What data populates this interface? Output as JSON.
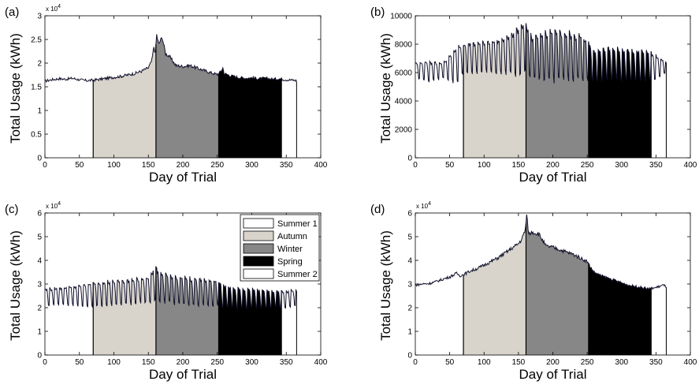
{
  "figure": {
    "seasons": [
      {
        "name": "Summer 1",
        "start": 0,
        "end": 70,
        "color": "#ffffff"
      },
      {
        "name": "Autumn",
        "start": 70,
        "end": 161,
        "color": "#d8d4cc"
      },
      {
        "name": "Winter",
        "start": 161,
        "end": 252,
        "color": "#878787"
      },
      {
        "name": "Spring",
        "start": 252,
        "end": 343,
        "color": "#000000"
      },
      {
        "name": "Summer 2",
        "start": 343,
        "end": 365,
        "color": "#ffffff"
      }
    ]
  },
  "chart_data": [
    {
      "panel": "(a)",
      "type": "area",
      "xlabel": "Day of Trial",
      "ylabel": "Total Usage (kWh)",
      "xlim": [
        0,
        400
      ],
      "ylim": [
        0,
        30000
      ],
      "xticks": [
        0,
        50,
        100,
        150,
        200,
        250,
        300,
        350,
        400
      ],
      "yticks": [
        0,
        5000,
        10000,
        15000,
        20000,
        25000,
        30000
      ],
      "ytick_labels": [
        "0",
        "0.5",
        "1",
        "1.5",
        "2",
        "2.5",
        "3"
      ],
      "multiplier": "x 10",
      "multiplier_exp": "4",
      "series": [
        {
          "x": [
            0,
            10,
            20,
            30,
            40,
            50,
            60,
            70,
            80,
            90,
            100,
            110,
            120,
            130,
            140,
            150,
            155,
            158,
            160,
            162,
            165,
            170,
            175,
            180,
            190,
            200,
            210,
            220,
            230,
            240,
            250,
            255,
            258,
            260,
            270,
            280,
            290,
            300,
            310,
            320,
            330,
            340,
            350,
            360,
            365
          ],
          "y": [
            16200,
            16500,
            16700,
            16600,
            16800,
            16500,
            16300,
            16400,
            16600,
            16800,
            17000,
            17200,
            17500,
            17800,
            18300,
            19000,
            20500,
            23500,
            22000,
            26000,
            24000,
            25500,
            22000,
            21500,
            19500,
            19300,
            19500,
            19000,
            18500,
            18000,
            17600,
            18200,
            19000,
            17800,
            17300,
            17000,
            16800,
            16900,
            16700,
            16800,
            16600,
            16700,
            16500,
            16400,
            16300
          ]
        }
      ]
    },
    {
      "panel": "(b)",
      "type": "area",
      "xlabel": "Day of Trial",
      "ylabel": "Total Usage (kWh)",
      "xlim": [
        0,
        400
      ],
      "ylim": [
        0,
        10000
      ],
      "xticks": [
        0,
        50,
        100,
        150,
        200,
        250,
        300,
        350,
        400
      ],
      "yticks": [
        0,
        2000,
        4000,
        6000,
        8000,
        10000
      ],
      "ytick_labels": [
        "0",
        "2000",
        "4000",
        "6000",
        "8000",
        "10000"
      ],
      "multiplier": "",
      "multiplier_exp": "",
      "series": [
        {
          "x": [
            0,
            20,
            40,
            60,
            70,
            80,
            100,
            120,
            140,
            150,
            160,
            170,
            180,
            200,
            220,
            240,
            250,
            260,
            280,
            300,
            320,
            340,
            350,
            360,
            365
          ],
          "peak": [
            6700,
            6800,
            6700,
            7800,
            8000,
            8100,
            8200,
            8300,
            8700,
            9300,
            9600,
            8500,
            8800,
            9000,
            8900,
            8700,
            8300,
            7600,
            7800,
            7700,
            7600,
            7500,
            7200,
            6900,
            6700
          ],
          "low": [
            5600,
            5400,
            5600,
            5300,
            5900,
            6000,
            6000,
            6000,
            5900,
            5800,
            6100,
            5600,
            5500,
            5400,
            5500,
            5500,
            5500,
            5500,
            5500,
            5500,
            5400,
            5400,
            5500,
            5800,
            6000
          ]
        }
      ]
    },
    {
      "panel": "(c)",
      "type": "area",
      "xlabel": "Day of Trial",
      "ylabel": "Total Usage (kWh)",
      "xlim": [
        0,
        400
      ],
      "ylim": [
        0,
        60000
      ],
      "xticks": [
        0,
        50,
        100,
        150,
        200,
        250,
        300,
        350,
        400
      ],
      "yticks": [
        0,
        10000,
        20000,
        30000,
        40000,
        50000,
        60000
      ],
      "ytick_labels": [
        "0",
        "1",
        "2",
        "3",
        "4",
        "5",
        "6"
      ],
      "multiplier": "x 10",
      "multiplier_exp": "4",
      "series": [
        {
          "x": [
            0,
            20,
            40,
            60,
            70,
            80,
            100,
            120,
            140,
            150,
            160,
            165,
            170,
            180,
            200,
            220,
            240,
            250,
            260,
            280,
            300,
            320,
            340,
            350,
            360,
            365
          ],
          "peak": [
            28000,
            28500,
            29000,
            30000,
            30500,
            31000,
            31500,
            32000,
            32500,
            33000,
            38000,
            35000,
            35000,
            33500,
            33000,
            32500,
            32000,
            31500,
            29500,
            28500,
            28000,
            27500,
            27000,
            27000,
            27500,
            27000
          ],
          "low": [
            21000,
            21500,
            21000,
            20500,
            20500,
            21000,
            21000,
            21500,
            22000,
            22000,
            23000,
            23000,
            22500,
            22000,
            21500,
            21000,
            21000,
            20500,
            20000,
            20000,
            19800,
            19800,
            20000,
            20000,
            21000,
            21000
          ]
        }
      ]
    },
    {
      "panel": "(d)",
      "type": "area",
      "xlabel": "Day of Trial",
      "ylabel": "Total Usage (kWh)",
      "xlim": [
        0,
        400
      ],
      "ylim": [
        0,
        60000
      ],
      "xticks": [
        0,
        50,
        100,
        150,
        200,
        250,
        300,
        350,
        400
      ],
      "yticks": [
        0,
        10000,
        20000,
        30000,
        40000,
        50000,
        60000
      ],
      "ytick_labels": [
        "0",
        "1",
        "2",
        "3",
        "4",
        "5",
        "6"
      ],
      "multiplier": "x 10",
      "multiplier_exp": "4",
      "series": [
        {
          "x": [
            0,
            10,
            20,
            30,
            40,
            50,
            60,
            65,
            70,
            80,
            90,
            100,
            110,
            120,
            130,
            140,
            150,
            155,
            160,
            162,
            165,
            170,
            180,
            190,
            200,
            210,
            220,
            230,
            240,
            250,
            255,
            260,
            270,
            280,
            290,
            300,
            310,
            320,
            330,
            340,
            350,
            360,
            365
          ],
          "y": [
            29500,
            30000,
            30200,
            31000,
            32000,
            33000,
            34500,
            33500,
            34000,
            35500,
            36500,
            38000,
            39500,
            41000,
            43000,
            45000,
            47000,
            49000,
            53000,
            59000,
            51000,
            52000,
            51000,
            46000,
            45500,
            44500,
            43500,
            42500,
            41000,
            39500,
            37000,
            35000,
            33500,
            32500,
            31500,
            30500,
            29500,
            29000,
            28500,
            28000,
            28500,
            29500,
            29000
          ]
        }
      ]
    }
  ],
  "legend": {
    "entries": [
      "Summer 1",
      "Autumn",
      "Winter",
      "Spring",
      "Summer 2"
    ],
    "panel": "(c)",
    "placement": "top-right"
  }
}
